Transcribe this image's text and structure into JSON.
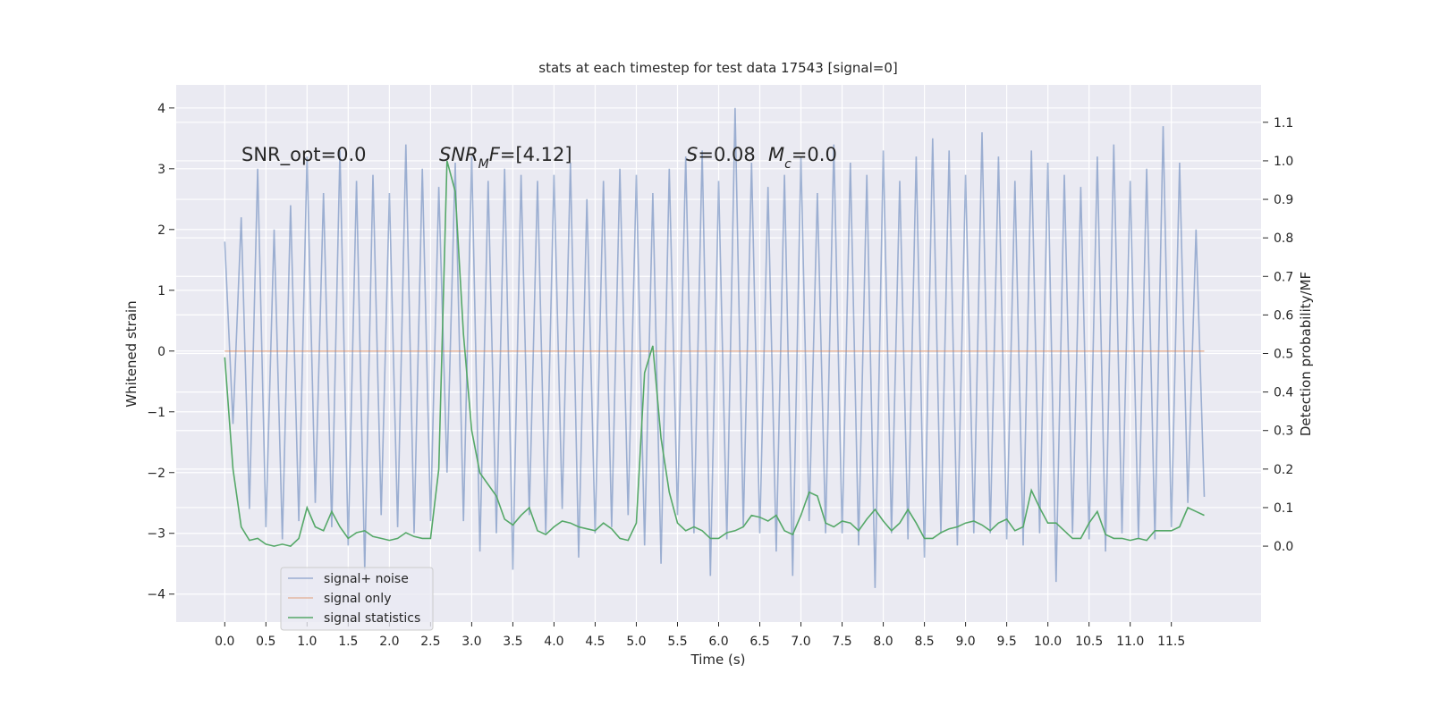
{
  "chart_data": {
    "type": "line",
    "title": "stats at each timestep for test data 17543 [signal=0]",
    "xlabel": "Time (s)",
    "ylabel": "Whitened strain",
    "y2label": "Detection probability/MF",
    "annotations": [
      {
        "parts": [
          {
            "text": "SNR_opt=0.0",
            "style": "normal"
          }
        ]
      },
      {
        "parts": [
          {
            "text": "SNR",
            "style": "italic"
          },
          {
            "text": "M",
            "style": "sub"
          },
          {
            "text": "F",
            "style": "italic"
          },
          {
            "text": "=[4.12]",
            "style": "normal"
          }
        ]
      },
      {
        "parts": [
          {
            "text": "S",
            "style": "italic"
          },
          {
            "text": "=0.08",
            "style": "normal"
          }
        ]
      },
      {
        "parts": [
          {
            "text": "M",
            "style": "italic"
          },
          {
            "text": "c",
            "style": "sub"
          },
          {
            "text": "=0.0",
            "style": "normal"
          }
        ]
      }
    ],
    "x": [
      0,
      0.1,
      0.2,
      0.3,
      0.4,
      0.5,
      0.6,
      0.7,
      0.8,
      0.9,
      1,
      1.1,
      1.2,
      1.3,
      1.4,
      1.5,
      1.6,
      1.7,
      1.8,
      1.9,
      2,
      2.1,
      2.2,
      2.3,
      2.4,
      2.5,
      2.6,
      2.7,
      2.8,
      2.9,
      3,
      3.1,
      3.2,
      3.3,
      3.4,
      3.5,
      3.6,
      3.7,
      3.8,
      3.9,
      4,
      4.1,
      4.2,
      4.3,
      4.4,
      4.5,
      4.6,
      4.7,
      4.8,
      4.9,
      5,
      5.1,
      5.2,
      5.3,
      5.4,
      5.5,
      5.6,
      5.7,
      5.8,
      5.9,
      6,
      6.1,
      6.2,
      6.3,
      6.4,
      6.5,
      6.6,
      6.7,
      6.8,
      6.9,
      7,
      7.1,
      7.2,
      7.3,
      7.4,
      7.5,
      7.6,
      7.7,
      7.8,
      7.9,
      8,
      8.1,
      8.2,
      8.3,
      8.4,
      8.5,
      8.6,
      8.7,
      8.8,
      8.9,
      9,
      9.1,
      9.2,
      9.3,
      9.4,
      9.5,
      9.6,
      9.7,
      9.8,
      9.9,
      10,
      10.1,
      10.2,
      10.3,
      10.4,
      10.5,
      10.6,
      10.7,
      10.8,
      10.9,
      11,
      11.1,
      11.2,
      11.3,
      11.4,
      11.5,
      11.6,
      11.7,
      11.8,
      11.9
    ],
    "series": [
      {
        "name": "signal+ noise",
        "color": "#4c72b0",
        "alpha": 0.5,
        "values": [
          1.8,
          -1.2,
          2.2,
          -2.6,
          3.0,
          -2.9,
          2.0,
          -3.1,
          2.4,
          -2.8,
          3.2,
          -2.5,
          2.6,
          -2.9,
          3.3,
          -3.2,
          2.8,
          -3.6,
          2.9,
          -2.7,
          2.6,
          -2.9,
          3.4,
          -3.0,
          3.0,
          -2.8,
          2.7,
          -2.0,
          3.1,
          -2.8,
          3.2,
          -3.3,
          2.8,
          -3.0,
          3.0,
          -3.6,
          2.9,
          -2.7,
          2.8,
          -3.0,
          2.9,
          -2.6,
          3.1,
          -3.4,
          2.5,
          -3.0,
          2.8,
          -2.9,
          3.0,
          -2.7,
          2.9,
          -3.2,
          2.6,
          -3.5,
          3.0,
          -2.7,
          3.2,
          -3.0,
          3.3,
          -3.7,
          2.8,
          -3.1,
          4.0,
          -2.9,
          3.1,
          -3.0,
          2.7,
          -3.3,
          2.9,
          -3.7,
          3.2,
          -2.8,
          2.6,
          -3.0,
          3.4,
          -3.0,
          3.1,
          -3.2,
          2.9,
          -3.9,
          3.3,
          -3.0,
          2.8,
          -3.1,
          3.2,
          -3.4,
          3.5,
          -3.0,
          3.3,
          -3.2,
          2.9,
          -3.0,
          3.6,
          -3.0,
          3.2,
          -3.1,
          2.8,
          -3.2,
          3.3,
          -3.0,
          3.1,
          -3.8,
          2.9,
          -3.0,
          2.7,
          -3.1,
          3.2,
          -3.3,
          3.4,
          -3.0,
          2.8,
          -3.1,
          3.0,
          -3.1,
          3.7,
          -2.9,
          3.1,
          -2.5,
          2.0,
          -2.4
        ]
      },
      {
        "name": "signal only",
        "color": "#dd8452",
        "alpha": 0.5,
        "x": [
          0,
          11.9
        ],
        "values": [
          0,
          0
        ]
      },
      {
        "name": "signal statistics",
        "color": "#55a868",
        "alpha": 1,
        "axis": "y2",
        "values": [
          0.49,
          0.2,
          0.05,
          0.015,
          0.02,
          0.005,
          0.0,
          0.005,
          0.0,
          0.02,
          0.1,
          0.05,
          0.04,
          0.09,
          0.05,
          0.02,
          0.035,
          0.04,
          0.025,
          0.02,
          0.015,
          0.02,
          0.035,
          0.025,
          0.02,
          0.02,
          0.2,
          1.0,
          0.92,
          0.55,
          0.3,
          0.19,
          0.16,
          0.13,
          0.07,
          0.055,
          0.08,
          0.1,
          0.04,
          0.03,
          0.05,
          0.065,
          0.06,
          0.05,
          0.045,
          0.04,
          0.06,
          0.045,
          0.02,
          0.015,
          0.06,
          0.45,
          0.52,
          0.28,
          0.14,
          0.06,
          0.04,
          0.05,
          0.04,
          0.02,
          0.02,
          0.035,
          0.04,
          0.05,
          0.08,
          0.075,
          0.065,
          0.08,
          0.04,
          0.03,
          0.08,
          0.14,
          0.13,
          0.06,
          0.05,
          0.065,
          0.06,
          0.04,
          0.07,
          0.095,
          0.065,
          0.04,
          0.06,
          0.095,
          0.06,
          0.02,
          0.02,
          0.035,
          0.045,
          0.05,
          0.06,
          0.065,
          0.055,
          0.04,
          0.06,
          0.07,
          0.04,
          0.05,
          0.145,
          0.1,
          0.06,
          0.06,
          0.04,
          0.02,
          0.02,
          0.06,
          0.09,
          0.03,
          0.02,
          0.02,
          0.015,
          0.02,
          0.015,
          0.04,
          0.04,
          0.04,
          0.05,
          0.1,
          0.09,
          0.08
        ]
      }
    ],
    "xlim": [
      -0.59,
      12.59
    ],
    "ylim": [
      -4.46,
      4.38
    ],
    "y2lim": [
      -0.197,
      1.197
    ],
    "xticks": [
      {
        "value": 0,
        "label": "0.0"
      },
      0.5,
      {
        "value": 1,
        "label": "1.0"
      },
      1.5,
      {
        "value": 2,
        "label": "2.0"
      },
      2.5,
      {
        "value": 3,
        "label": "3.0"
      },
      3.5,
      {
        "value": 4,
        "label": "4.0"
      },
      4.5,
      {
        "value": 5,
        "label": "5.0"
      },
      5.5,
      {
        "value": 6,
        "label": "6.0"
      },
      6.5,
      {
        "value": 7,
        "label": "7.0"
      },
      7.5,
      {
        "value": 8,
        "label": "8.0"
      },
      8.5,
      {
        "value": 9,
        "label": "9.0"
      },
      9.5,
      {
        "value": 10,
        "label": "10.0"
      },
      10.5,
      {
        "value": 11,
        "label": "11.0"
      },
      11.5
    ],
    "yticks": [
      {
        "value": -4,
        "label": "−4"
      },
      {
        "value": -3,
        "label": "−3"
      },
      {
        "value": -2,
        "label": "−2"
      },
      {
        "value": -1,
        "label": "−1"
      },
      0,
      1,
      2,
      3,
      4
    ],
    "y2ticks": [
      {
        "value": 0,
        "label": "0.0"
      },
      0.1,
      0.2,
      0.3,
      0.4,
      0.5,
      0.6,
      0.7,
      0.8,
      0.9,
      {
        "value": 1,
        "label": "1.0"
      },
      1.1
    ],
    "grid": true,
    "legend": "lower left"
  }
}
